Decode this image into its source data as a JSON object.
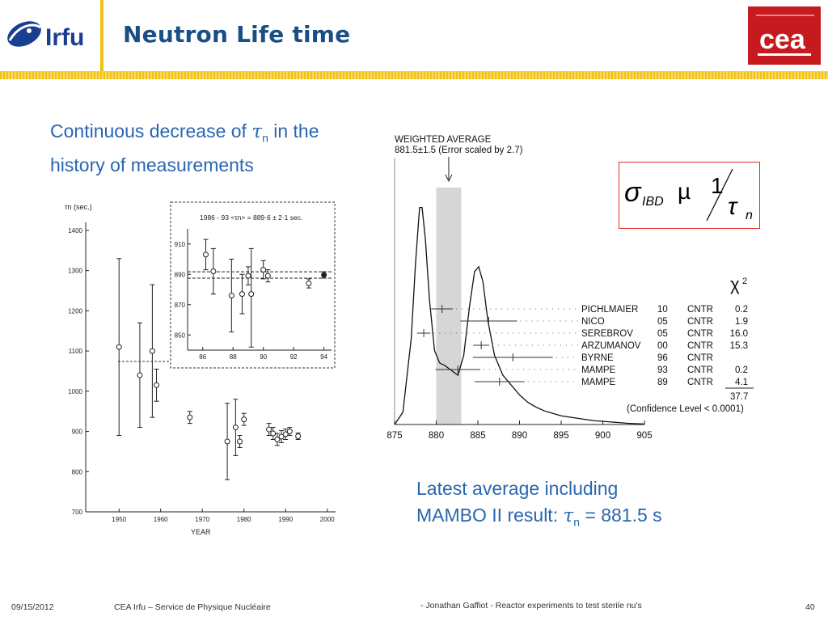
{
  "header": {
    "title": "Neutron Life time",
    "logo_left_text": "Irfu",
    "logo_right_text": "cea"
  },
  "intro": {
    "line_prefix": "Continuous decrease of ",
    "tau": "τ",
    "sub": "n",
    "line_suffix": " in the history of measurements"
  },
  "latest": {
    "line1": "Latest average including",
    "line2_prefix": "MAMBO II result:  ",
    "tau": "τ",
    "sub": "n",
    "line2_suffix": " = 881.5 s"
  },
  "formula": {
    "sigma": "σ",
    "sub": "IBD",
    "prop": "µ",
    "one": "1",
    "tau": "τ",
    "n": "n"
  },
  "footer": {
    "date": "09/15/2012",
    "org": "CEA Irfu – Service de Physique Nucléaire",
    "talk": "- Jonathan Gaffiot - Reactor experiments to test sterile nu's",
    "page": "40"
  },
  "chart_data": [
    {
      "type": "scatter",
      "ylabel": "τn (sec.)",
      "xlabel": "YEAR",
      "x_ticks": [
        1950,
        1960,
        1970,
        1980,
        1990,
        2000
      ],
      "y_ticks": [
        700,
        800,
        900,
        1000,
        1100,
        1200,
        1300,
        1400
      ],
      "xlim": [
        1942,
        2002
      ],
      "ylim": [
        700,
        1420
      ],
      "points": [
        {
          "x": 1950,
          "y": 1110,
          "lo": 890,
          "hi": 1330
        },
        {
          "x": 1955,
          "y": 1040,
          "lo": 910,
          "hi": 1170
        },
        {
          "x": 1958,
          "y": 1100,
          "lo": 935,
          "hi": 1265
        },
        {
          "x": 1959,
          "y": 1015,
          "lo": 975,
          "hi": 1055
        },
        {
          "x": 1967,
          "y": 935,
          "lo": 920,
          "hi": 950
        },
        {
          "x": 1976,
          "y": 875,
          "lo": 780,
          "hi": 970
        },
        {
          "x": 1978,
          "y": 910,
          "lo": 840,
          "hi": 980
        },
        {
          "x": 1979,
          "y": 875,
          "lo": 860,
          "hi": 890
        },
        {
          "x": 1980,
          "y": 930,
          "lo": 915,
          "hi": 945
        },
        {
          "x": 1986,
          "y": 905,
          "lo": 890,
          "hi": 920
        },
        {
          "x": 1987,
          "y": 895,
          "lo": 880,
          "hi": 910
        },
        {
          "x": 1988,
          "y": 880,
          "lo": 865,
          "hi": 895
        },
        {
          "x": 1989,
          "y": 887,
          "lo": 872,
          "hi": 902
        },
        {
          "x": 1990,
          "y": 893,
          "lo": 880,
          "hi": 906
        },
        {
          "x": 1991,
          "y": 900,
          "lo": 890,
          "hi": 910
        },
        {
          "x": 1993,
          "y": 888,
          "lo": 880,
          "hi": 896
        }
      ],
      "inset": {
        "annotation": "1986 - 93 <τn> = 889·6 ± 2·1 sec.",
        "x_ticks": [
          86,
          88,
          90,
          92,
          94
        ],
        "y_ticks": [
          850,
          870,
          890,
          910
        ],
        "xlim": [
          85,
          94.5
        ],
        "ylim": [
          840,
          920
        ],
        "band": [
          887.5,
          891.7
        ],
        "points": [
          {
            "x": 86.2,
            "y": 903,
            "lo": 893,
            "hi": 913
          },
          {
            "x": 86.7,
            "y": 892,
            "lo": 877,
            "hi": 907
          },
          {
            "x": 87.9,
            "y": 876,
            "lo": 852,
            "hi": 900
          },
          {
            "x": 88.6,
            "y": 877,
            "lo": 864,
            "hi": 890
          },
          {
            "x": 89.0,
            "y": 889,
            "lo": 883,
            "hi": 895
          },
          {
            "x": 89.2,
            "y": 877,
            "lo": 842,
            "hi": 907
          },
          {
            "x": 90.0,
            "y": 893,
            "lo": 887,
            "hi": 899
          },
          {
            "x": 90.3,
            "y": 889,
            "lo": 885,
            "hi": 893
          },
          {
            "x": 93.0,
            "y": 884,
            "lo": 881,
            "hi": 887
          },
          {
            "x": 94.0,
            "y": 889.6,
            "lo": 887.5,
            "hi": 891.7,
            "filled": true
          }
        ]
      }
    },
    {
      "type": "line",
      "title": "WEIGHTED AVERAGE",
      "subtitle": "881.5±1.5 (Error scaled by 2.7)",
      "x_ticks": [
        875,
        880,
        885,
        890,
        895,
        900,
        905
      ],
      "xlim": [
        875,
        905
      ],
      "band": [
        880,
        883
      ],
      "chi2_header": "χ2",
      "curve": [
        [
          875,
          0.0
        ],
        [
          876,
          0.05
        ],
        [
          877,
          0.35
        ],
        [
          877.5,
          0.65
        ],
        [
          878,
          0.88
        ],
        [
          878.3,
          0.88
        ],
        [
          878.7,
          0.75
        ],
        [
          879.2,
          0.5
        ],
        [
          879.8,
          0.3
        ],
        [
          880.4,
          0.25
        ],
        [
          881,
          0.24
        ],
        [
          881.8,
          0.22
        ],
        [
          882.6,
          0.2
        ],
        [
          883.3,
          0.28
        ],
        [
          884,
          0.48
        ],
        [
          884.6,
          0.62
        ],
        [
          885.1,
          0.64
        ],
        [
          885.6,
          0.58
        ],
        [
          886.2,
          0.42
        ],
        [
          887,
          0.28
        ],
        [
          888,
          0.2
        ],
        [
          889,
          0.16
        ],
        [
          890,
          0.12
        ],
        [
          891,
          0.09
        ],
        [
          892,
          0.07
        ],
        [
          893,
          0.055
        ],
        [
          894,
          0.045
        ],
        [
          895,
          0.035
        ],
        [
          897,
          0.025
        ],
        [
          899,
          0.015
        ],
        [
          901,
          0.01
        ],
        [
          903,
          0.005
        ],
        [
          905,
          0.002
        ]
      ],
      "measurements": [
        {
          "name": "PICHLMAIER",
          "year": "10",
          "method": "CNTR",
          "chi2": "0.2",
          "value": 880.7,
          "err": 1.3
        },
        {
          "name": "NICO",
          "year": "05",
          "method": "CNTR",
          "chi2": "1.9",
          "value": 886.3,
          "err": 3.4
        },
        {
          "name": "SEREBROV",
          "year": "05",
          "method": "CNTR",
          "chi2": "16.0",
          "value": 878.5,
          "err": 0.8
        },
        {
          "name": "ARZUMANOV",
          "year": "00",
          "method": "CNTR",
          "chi2": "15.3",
          "value": 885.4,
          "err": 0.95
        },
        {
          "name": "BYRNE",
          "year": "96",
          "method": "CNTR",
          "chi2": "",
          "value": 889.2,
          "err": 4.8
        },
        {
          "name": "MAMPE",
          "year": "93",
          "method": "CNTR",
          "chi2": "0.2",
          "value": 882.6,
          "err": 2.7
        },
        {
          "name": "MAMPE",
          "year": "89",
          "method": "CNTR",
          "chi2": "4.1",
          "value": 887.6,
          "err": 3.0
        }
      ],
      "chi2_total": "37.7",
      "confidence": "(Confidence Level < 0.0001)"
    }
  ]
}
